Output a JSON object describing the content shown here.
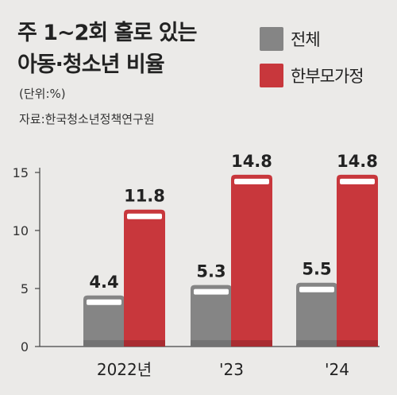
{
  "title": {
    "line1": "주 1~2회 홀로 있는",
    "line2": "아동·청소년 비율"
  },
  "unit": "(단위:%)",
  "source": "자료:한국청소년정책연구원",
  "colors": {
    "total": "#858585",
    "single_parent": "#c8373c",
    "total_bottom": "#737373",
    "single_parent_bottom": "#a92c31",
    "background": "#ebeae8"
  },
  "chart_data": {
    "type": "bar",
    "title": "주 1~2회 홀로 있는 아동·청소년 비율",
    "ylabel": "",
    "xlabel": "",
    "categories": [
      "2022년",
      "'23",
      "'24"
    ],
    "series": [
      {
        "name": "전체",
        "values": [
          4.4,
          5.3,
          5.5
        ]
      },
      {
        "name": "한부모가정",
        "values": [
          11.8,
          14.8,
          14.8
        ]
      }
    ],
    "yticks": [
      "0",
      "5",
      "10",
      "15"
    ],
    "ylim": [
      0,
      15
    ],
    "legend_position": "top-right",
    "grid": false
  }
}
